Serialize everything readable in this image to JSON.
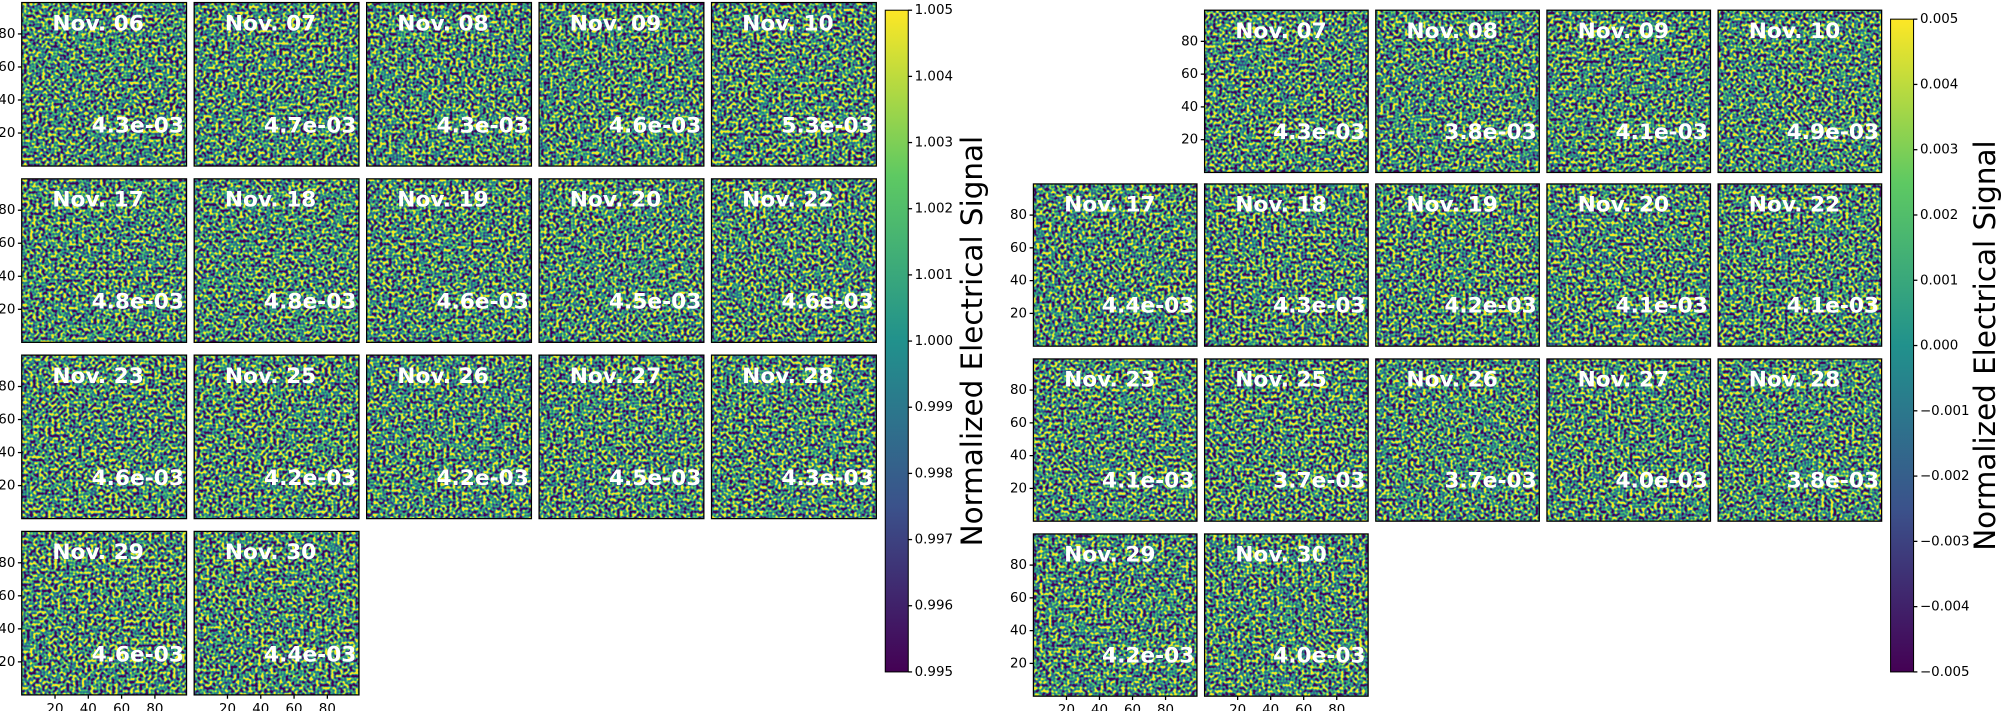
{
  "chart_data": [
    {
      "type": "heatmap",
      "colormap": "viridis",
      "xlim": [
        0,
        99
      ],
      "ylim": [
        0,
        99
      ],
      "xticks": [
        20,
        40,
        60,
        80
      ],
      "yticks": [
        20,
        40,
        60,
        80
      ],
      "panels": [
        {
          "title": "Nov. 06",
          "annotation": "4.3e-03"
        },
        {
          "title": "Nov. 07",
          "annotation": "4.7e-03"
        },
        {
          "title": "Nov. 08",
          "annotation": "4.3e-03"
        },
        {
          "title": "Nov. 09",
          "annotation": "4.6e-03"
        },
        {
          "title": "Nov. 10",
          "annotation": "5.3e-03"
        },
        {
          "title": "Nov. 17",
          "annotation": "4.8e-03"
        },
        {
          "title": "Nov. 18",
          "annotation": "4.8e-03"
        },
        {
          "title": "Nov. 19",
          "annotation": "4.6e-03"
        },
        {
          "title": "Nov. 20",
          "annotation": "4.5e-03"
        },
        {
          "title": "Nov. 22",
          "annotation": "4.6e-03"
        },
        {
          "title": "Nov. 23",
          "annotation": "4.6e-03"
        },
        {
          "title": "Nov. 25",
          "annotation": "4.2e-03"
        },
        {
          "title": "Nov. 26",
          "annotation": "4.2e-03"
        },
        {
          "title": "Nov. 27",
          "annotation": "4.5e-03"
        },
        {
          "title": "Nov. 28",
          "annotation": "4.3e-03"
        },
        {
          "title": "Nov. 29",
          "annotation": "4.6e-03"
        },
        {
          "title": "Nov. 30",
          "annotation": "4.4e-03"
        }
      ],
      "colorbar": {
        "label": "Normalized Electrical Signal",
        "lim": [
          0.995,
          1.005
        ],
        "ticks": [
          0.995,
          0.996,
          0.997,
          0.998,
          0.999,
          {
            "value": 1,
            "label": "1.000"
          },
          1.001,
          1.002,
          1.003,
          1.004,
          1.005
        ]
      }
    },
    {
      "type": "heatmap",
      "colormap": "viridis",
      "xlim": [
        0,
        99
      ],
      "ylim": [
        0,
        99
      ],
      "xticks": [
        20,
        40,
        60,
        80
      ],
      "yticks": [
        20,
        40,
        60,
        80
      ],
      "panels": [
        {
          "title": "Nov. 07",
          "annotation": "4.3e-03"
        },
        {
          "title": "Nov. 08",
          "annotation": "3.8e-03"
        },
        {
          "title": "Nov. 09",
          "annotation": "4.1e-03"
        },
        {
          "title": "Nov. 10",
          "annotation": "4.9e-03"
        },
        {
          "title": "Nov. 17",
          "annotation": "4.4e-03"
        },
        {
          "title": "Nov. 18",
          "annotation": "4.3e-03"
        },
        {
          "title": "Nov. 19",
          "annotation": "4.2e-03"
        },
        {
          "title": "Nov. 20",
          "annotation": "4.1e-03"
        },
        {
          "title": "Nov. 22",
          "annotation": "4.1e-03"
        },
        {
          "title": "Nov. 23",
          "annotation": "4.1e-03"
        },
        {
          "title": "Nov. 25",
          "annotation": "3.7e-03"
        },
        {
          "title": "Nov. 26",
          "annotation": "3.7e-03"
        },
        {
          "title": "Nov. 27",
          "annotation": "4.0e-03"
        },
        {
          "title": "Nov. 28",
          "annotation": "3.8e-03"
        },
        {
          "title": "Nov. 29",
          "annotation": "4.2e-03"
        },
        {
          "title": "Nov. 30",
          "annotation": "4.0e-03"
        }
      ],
      "colorbar": {
        "label": "Normalized Electrical Signal",
        "lim": [
          -0.005,
          0.005
        ],
        "ticks": [
          {
            "value": -0.005,
            "label": "−0.005"
          },
          {
            "value": -0.004,
            "label": "−0.004"
          },
          {
            "value": -0.003,
            "label": "−0.003"
          },
          {
            "value": -0.002,
            "label": "−0.002"
          },
          {
            "value": -0.001,
            "label": "−0.001"
          },
          {
            "value": 0,
            "label": "0.000"
          },
          0.001,
          0.002,
          0.003,
          0.004,
          0.005
        ]
      }
    }
  ]
}
